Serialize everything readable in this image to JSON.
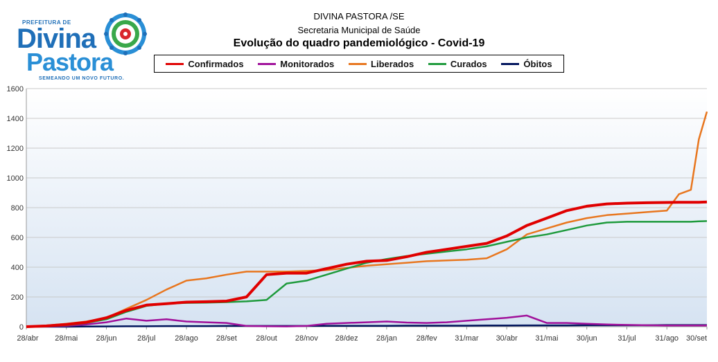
{
  "header": {
    "line1": "DIVINA PASTORA /SE",
    "line2": "Secretaria Municipal de Saúde",
    "title": "Evolução do quadro pandemiológico - Covid-19"
  },
  "logo": {
    "prefeitura": "PREFEITURA DE",
    "divina": "Divina",
    "pastora": "Pastora",
    "slogan": "SEMEANDO UM NOVO FUTURO."
  },
  "colors": {
    "plot_bg_top": "#ffffff",
    "plot_bg_bottom": "#d6e3f2",
    "grid": "#c9c9c9",
    "confirmados": "#e00000",
    "monitorados": "#a0109a",
    "liberados": "#e8761e",
    "curados": "#1e9a3c",
    "obitos": "#00145c"
  },
  "chart_data": {
    "type": "line",
    "title": "Evolução do quadro pandemiológico - Covid-19",
    "xlabel": "",
    "ylabel": "",
    "ylim": [
      0,
      1600
    ],
    "yticks": [
      0,
      200,
      400,
      600,
      800,
      1000,
      1200,
      1400,
      1600
    ],
    "grid": true,
    "legend_position": "top",
    "x_tick_labels": [
      "28/abr",
      "28/mai",
      "28/jun",
      "28/jul",
      "28/ago",
      "28/set",
      "28/out",
      "28/nov",
      "28/dez",
      "28/jan",
      "28/fev",
      "31/mar",
      "30/abr",
      "31/mai",
      "30/jun",
      "31/jul",
      "31/ago",
      "30/set"
    ],
    "x": [
      0,
      0.5,
      1,
      1.5,
      2,
      2.5,
      3,
      3.5,
      4,
      4.5,
      5,
      5.5,
      6,
      6.5,
      7,
      7.5,
      8,
      8.5,
      9,
      9.5,
      10,
      10.5,
      11,
      11.5,
      12,
      12.5,
      13,
      13.5,
      14,
      14.5,
      15,
      15.5,
      16,
      16.3,
      16.6,
      16.8,
      17
    ],
    "series": [
      {
        "name": "Confirmados",
        "color_key": "confirmados",
        "width": 4,
        "values": [
          0,
          5,
          15,
          30,
          60,
          110,
          145,
          155,
          165,
          168,
          172,
          200,
          350,
          360,
          360,
          390,
          420,
          440,
          445,
          470,
          500,
          520,
          540,
          560,
          610,
          680,
          730,
          780,
          810,
          825,
          830,
          833,
          835,
          836,
          836,
          836,
          838
        ]
      },
      {
        "name": "Monitorados",
        "color_key": "monitorados",
        "width": 2.5,
        "values": [
          0,
          2,
          5,
          15,
          30,
          55,
          40,
          50,
          35,
          30,
          25,
          5,
          3,
          2,
          5,
          20,
          25,
          30,
          35,
          28,
          25,
          30,
          40,
          50,
          60,
          75,
          25,
          25,
          20,
          15,
          12,
          10,
          8,
          8,
          8,
          8,
          8
        ]
      },
      {
        "name": "Liberados",
        "color_key": "liberados",
        "width": 2.5,
        "values": [
          0,
          8,
          20,
          35,
          60,
          120,
          180,
          250,
          310,
          325,
          350,
          370,
          370,
          370,
          375,
          380,
          395,
          410,
          420,
          430,
          440,
          445,
          450,
          460,
          520,
          620,
          660,
          700,
          730,
          750,
          760,
          770,
          780,
          890,
          920,
          1260,
          1445
        ]
      },
      {
        "name": "Curados",
        "color_key": "curados",
        "width": 2.5,
        "values": [
          0,
          3,
          10,
          25,
          50,
          100,
          140,
          155,
          160,
          162,
          165,
          170,
          180,
          290,
          310,
          350,
          390,
          430,
          455,
          475,
          490,
          505,
          520,
          540,
          570,
          600,
          620,
          650,
          680,
          700,
          705,
          705,
          705,
          705,
          705,
          708,
          710
        ]
      },
      {
        "name": "Óbitos",
        "color_key": "obitos",
        "width": 2.5,
        "values": [
          0,
          0,
          0,
          1,
          2,
          3,
          3,
          4,
          4,
          4,
          5,
          5,
          5,
          5,
          5,
          6,
          6,
          6,
          6,
          7,
          7,
          7,
          7,
          8,
          8,
          9,
          9,
          9,
          10,
          10,
          10,
          10,
          11,
          11,
          11,
          11,
          11
        ]
      }
    ]
  }
}
